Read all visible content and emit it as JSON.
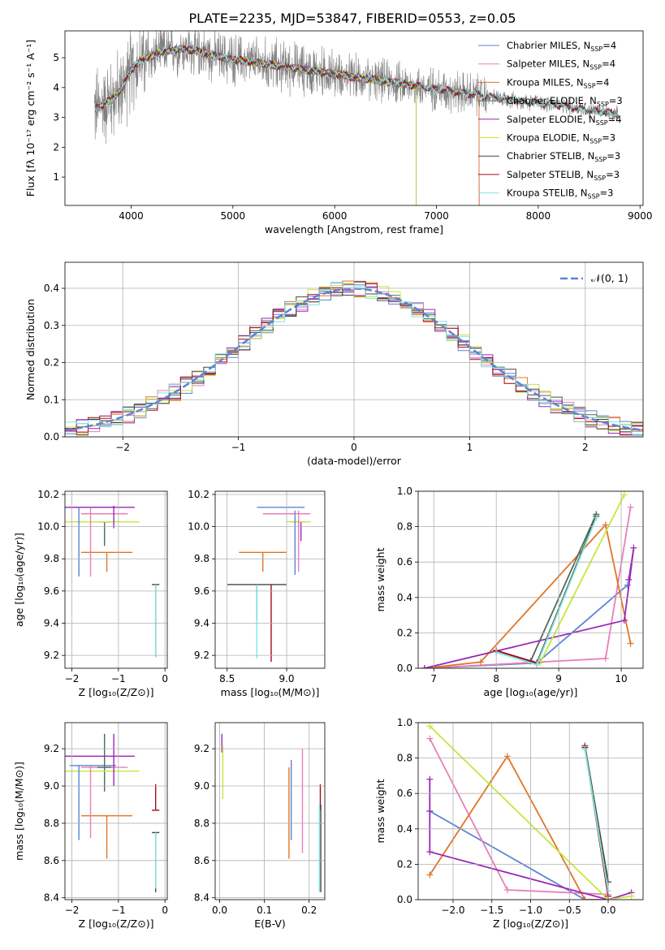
{
  "figure": {
    "title": "PLATE=2235, MJD=53847, FIBERID=0553, z=0.05"
  },
  "colors": {
    "Chabrier MILES": "#5b84d6",
    "Salpeter MILES": "#e87fb8",
    "Kroupa MILES": "#e07424",
    "Chabrier ELODIE": "#4f6b57",
    "Salpeter ELODIE": "#9a27b8",
    "Kroupa ELODIE": "#c4e83c",
    "Chabrier STELIB": "#3d4a40",
    "Salpeter STELIB": "#a8081e",
    "Kroupa STELIB": "#7fe6df",
    "data": "#808080",
    "gauss": "#5b84d6"
  },
  "chart_data": [
    {
      "id": "spectrum",
      "type": "line",
      "title": "PLATE=2235, MJD=53847, FIBERID=0553, z=0.05",
      "xlabel": "wavelength [Angstrom, rest frame]",
      "ylabel": "Flux [fλ 10⁻¹⁷ erg cm⁻² s⁻¹ A⁻¹]",
      "xlim": [
        3350,
        9030
      ],
      "ylim": [
        0.05,
        5.9
      ],
      "xticks": [
        4000,
        5000,
        6000,
        7000,
        8000,
        9000
      ],
      "yticks": [
        1,
        2,
        3,
        4,
        5
      ],
      "grid": false,
      "legend_position": "top-right",
      "legend": [
        {
          "label": "Chabrier MILES, N",
          "sub": "SSP",
          "suffix": "=4",
          "model": "Chabrier MILES"
        },
        {
          "label": "Salpeter MILES, N",
          "sub": "SSP",
          "suffix": "=4",
          "model": "Salpeter MILES"
        },
        {
          "label": "Kroupa MILES, N",
          "sub": "SSP",
          "suffix": "=4",
          "model": "Kroupa MILES"
        },
        {
          "label": "Chabrier ELODIE, N",
          "sub": "SSP",
          "suffix": "=3",
          "model": "Chabrier ELODIE"
        },
        {
          "label": "Salpeter ELODIE, N",
          "sub": "SSP",
          "suffix": "=4",
          "model": "Salpeter ELODIE"
        },
        {
          "label": "Kroupa ELODIE, N",
          "sub": "SSP",
          "suffix": "=3",
          "model": "Kroupa ELODIE"
        },
        {
          "label": "Chabrier STELIB, N",
          "sub": "SSP",
          "suffix": "=3",
          "model": "Chabrier STELIB"
        },
        {
          "label": "Salpeter STELIB, N",
          "sub": "SSP",
          "suffix": "=3",
          "model": "Salpeter STELIB"
        },
        {
          "label": "Kroupa STELIB, N",
          "sub": "SSP",
          "suffix": "=3",
          "model": "Kroupa STELIB"
        }
      ],
      "continuum": [
        [
          3650,
          3.3
        ],
        [
          3800,
          3.6
        ],
        [
          3900,
          3.9
        ],
        [
          4000,
          4.6
        ],
        [
          4100,
          4.9
        ],
        [
          4300,
          5.2
        ],
        [
          4500,
          5.3
        ],
        [
          4700,
          5.2
        ],
        [
          4900,
          5.0
        ],
        [
          5100,
          4.9
        ],
        [
          5400,
          4.75
        ],
        [
          5700,
          4.6
        ],
        [
          6000,
          4.45
        ],
        [
          6300,
          4.3
        ],
        [
          6600,
          4.15
        ],
        [
          6900,
          4.0
        ],
        [
          7200,
          3.85
        ],
        [
          7500,
          3.7
        ],
        [
          7800,
          3.55
        ],
        [
          8100,
          3.45
        ],
        [
          8400,
          3.3
        ],
        [
          8700,
          3.15
        ],
        [
          8780,
          3.1
        ]
      ],
      "models_range": {
        "MILES": [
          3650,
          7420
        ],
        "ELODIE": [
          3650,
          6800
        ],
        "STELIB": [
          3650,
          8780
        ]
      }
    },
    {
      "id": "residuals",
      "type": "histogram",
      "xlabel": "(data-model)/error",
      "ylabel": "Normed distribution",
      "xlim": [
        -2.5,
        2.5
      ],
      "ylim": [
        0,
        0.47
      ],
      "xticks": [
        -2,
        -1,
        0,
        1,
        2
      ],
      "yticks": [
        0.0,
        0.1,
        0.2,
        0.3,
        0.4
      ],
      "grid": true,
      "legend_position": "top-right",
      "legend": [
        {
          "label": "𝒩(0, 1)"
        }
      ],
      "bin_width": 0.1,
      "gaussian": {
        "mean": 0,
        "sigma": 1
      }
    },
    {
      "id": "z_age",
      "type": "errorbar",
      "xlabel": "Z [log₁₀(Z/Z⊙)]",
      "ylabel": "age  [log₁₀(age/yr)]",
      "xlim": [
        -2.15,
        0.05
      ],
      "ylim": [
        9.12,
        10.22
      ],
      "xticks": [
        -2,
        -1,
        0
      ],
      "yticks": [
        9.2,
        9.4,
        9.6,
        9.8,
        10.0,
        10.2
      ],
      "grid": true,
      "points": [
        {
          "model": "Chabrier MILES",
          "x": -1.55,
          "xerr": 0.5,
          "y": 10.12,
          "yerr": [
            0.0,
            0.0
          ]
        },
        {
          "model": "Salpeter MILES",
          "x": -1.3,
          "xerr": 0.5,
          "y": 10.08,
          "yerr": [
            0.0,
            0.0
          ]
        },
        {
          "model": "Kroupa MILES",
          "x": -1.25,
          "xerr": 0.55,
          "y": 9.84,
          "yerr": [
            0.12,
            0.0
          ]
        },
        {
          "model": "Chabrier ELODIE",
          "x": -1.3,
          "xerr": 0.15,
          "y": 10.03,
          "yerr": [
            0.15,
            0.0
          ]
        },
        {
          "model": "Salpeter ELODIE",
          "x": -1.45,
          "xerr": 0.8,
          "y": 10.12,
          "yerr": [
            0.0,
            0.0
          ]
        },
        {
          "model": "Kroupa ELODIE",
          "x": -1.35,
          "xerr": 0.8,
          "y": 10.03,
          "yerr": [
            0.0,
            0.0
          ]
        },
        {
          "model": "Chabrier STELIB",
          "x": -0.2,
          "xerr": 0.08,
          "y": 9.64,
          "yerr": [
            0.45,
            0.0
          ]
        },
        {
          "model": "Salpeter STELIB",
          "x": -0.2,
          "xerr": 0.0,
          "y": 9.64,
          "yerr": [
            0.45,
            0.0
          ]
        },
        {
          "model": "Kroupa STELIB",
          "x": -0.2,
          "xerr": 0.0,
          "y": 9.64,
          "yerr": [
            0.45,
            0.0
          ]
        },
        {
          "model": "Chabrier MILES",
          "x": -1.85,
          "xerr": 0.0,
          "y": 9.92,
          "yerr": [
            0.23,
            0.2
          ]
        },
        {
          "model": "Salpeter MILES",
          "x": -1.6,
          "xerr": 0.0,
          "y": 9.92,
          "yerr": [
            0.23,
            0.2
          ]
        },
        {
          "model": "Salpeter ELODIE",
          "x": -1.1,
          "xerr": 0.0,
          "y": 10.06,
          "yerr": [
            0.07,
            0.07
          ]
        }
      ]
    },
    {
      "id": "mass_age",
      "type": "errorbar",
      "xlabel": "mass [log₁₀(M/M⊙)]",
      "ylabel": "",
      "xlim": [
        8.4,
        9.32
      ],
      "ylim": [
        9.12,
        10.22
      ],
      "xticks": [
        8.5,
        9.0
      ],
      "yticks": [
        9.2,
        9.4,
        9.6,
        9.8,
        10.0,
        10.2
      ],
      "grid": true,
      "points": [
        {
          "model": "Chabrier MILES",
          "x": 8.95,
          "xerr": 0.2,
          "y": 10.12,
          "yerr": [
            0.0,
            0.0
          ]
        },
        {
          "model": "Salpeter MILES",
          "x": 9.0,
          "xerr": 0.2,
          "y": 10.08,
          "yerr": [
            0.0,
            0.0
          ]
        },
        {
          "model": "Kroupa MILES",
          "x": 8.8,
          "xerr": 0.2,
          "y": 9.84,
          "yerr": [
            0.12,
            0.0
          ]
        },
        {
          "model": "Chabrier ELODIE",
          "x": 9.1,
          "xerr": 0.05,
          "y": 10.03,
          "yerr": [
            0.05,
            0.0
          ]
        },
        {
          "model": "Salpeter ELODIE",
          "x": 9.12,
          "xerr": 0.0,
          "y": 10.03,
          "yerr": [
            0.12,
            0.0
          ]
        },
        {
          "model": "Kroupa ELODIE",
          "x": 9.1,
          "xerr": 0.1,
          "y": 10.03,
          "yerr": [
            0.0,
            0.0
          ]
        },
        {
          "model": "Chabrier STELIB",
          "x": 8.75,
          "xerr": 0.25,
          "y": 9.64,
          "yerr": [
            0.22,
            0.0
          ]
        },
        {
          "model": "Salpeter STELIB",
          "x": 8.87,
          "xerr": 0.0,
          "y": 9.64,
          "yerr": [
            0.48,
            0.0
          ]
        },
        {
          "model": "Kroupa STELIB",
          "x": 8.75,
          "xerr": 0.0,
          "y": 9.64,
          "yerr": [
            0.46,
            0.0
          ]
        },
        {
          "model": "Chabrier MILES",
          "x": 9.07,
          "xerr": 0.0,
          "y": 9.92,
          "yerr": [
            0.22,
            0.18
          ]
        },
        {
          "model": "Salpeter MILES",
          "x": 9.1,
          "xerr": 0.0,
          "y": 9.92,
          "yerr": [
            0.2,
            0.18
          ]
        }
      ]
    },
    {
      "id": "age_weight",
      "type": "line",
      "xlabel": "age  [log₁₀(age/yr)]",
      "ylabel": "mass weight",
      "xlim": [
        6.75,
        10.35
      ],
      "ylim": [
        0.0,
        1.0
      ],
      "xticks": [
        7,
        8,
        9,
        10
      ],
      "yticks": [
        0.0,
        0.2,
        0.4,
        0.6,
        0.8,
        1.0
      ],
      "grid": true,
      "series": [
        {
          "model": "Chabrier MILES",
          "x": [
            6.85,
            8.65,
            10.1
          ],
          "y": [
            0.0,
            0.03,
            0.47
          ]
        },
        {
          "model": "Salpeter MILES",
          "x": [
            6.85,
            9.75,
            10.15
          ],
          "y": [
            0.0,
            0.055,
            0.91
          ]
        },
        {
          "model": "Kroupa MILES",
          "x": [
            6.85,
            7.75,
            9.75,
            10.15
          ],
          "y": [
            0.0,
            0.035,
            0.81,
            0.14
          ]
        },
        {
          "model": "Chabrier ELODIE",
          "x": [
            8.0,
            8.55,
            9.6
          ],
          "y": [
            0.1,
            0.04,
            0.87
          ]
        },
        {
          "model": "Salpeter ELODIE",
          "x": [
            6.85,
            10.05,
            10.2,
            10.12
          ],
          "y": [
            0.0,
            0.27,
            0.68,
            0.5
          ]
        },
        {
          "model": "Kroupa ELODIE",
          "x": [
            8.7,
            10.05
          ],
          "y": [
            0.03,
            0.98
          ]
        },
        {
          "model": "Chabrier STELIB",
          "x": [
            8.0,
            8.65,
            9.6
          ],
          "y": [
            0.1,
            0.03,
            0.86
          ]
        },
        {
          "model": "Salpeter STELIB",
          "x": [
            8.0,
            8.65
          ],
          "y": [
            0.1,
            0.03
          ]
        },
        {
          "model": "Kroupa STELIB",
          "x": [
            8.0,
            8.65,
            9.6
          ],
          "y": [
            0.09,
            0.02,
            0.85
          ]
        }
      ]
    },
    {
      "id": "z_mass",
      "type": "errorbar",
      "xlabel": "Z [log₁₀(Z/Z⊙)]",
      "ylabel": "mass [log₁₀(M/M⊙)]",
      "xlim": [
        -2.15,
        0.05
      ],
      "ylim": [
        8.39,
        9.34
      ],
      "xticks": [
        -2,
        -1,
        0
      ],
      "yticks": [
        8.4,
        8.6,
        8.8,
        9.0,
        9.2
      ],
      "grid": true,
      "points": [
        {
          "model": "Chabrier MILES",
          "x": -1.55,
          "xerr": 0.5,
          "y": 9.11,
          "yerr": [
            0.0,
            0.0
          ]
        },
        {
          "model": "Salpeter MILES",
          "x": -1.3,
          "xerr": 0.5,
          "y": 9.1,
          "yerr": [
            0.0,
            0.0
          ]
        },
        {
          "model": "Kroupa MILES",
          "x": -1.25,
          "xerr": 0.55,
          "y": 8.84,
          "yerr": [
            0.23,
            0.0
          ]
        },
        {
          "model": "Chabrier ELODIE",
          "x": -1.3,
          "xerr": 0.15,
          "y": 9.1,
          "yerr": [
            0.13,
            0.18
          ]
        },
        {
          "model": "Salpeter ELODIE",
          "x": -1.45,
          "xerr": 0.8,
          "y": 9.16,
          "yerr": [
            0.0,
            0.0
          ]
        },
        {
          "model": "Kroupa ELODIE",
          "x": -1.35,
          "xerr": 0.8,
          "y": 9.08,
          "yerr": [
            0.0,
            0.0
          ]
        },
        {
          "model": "Chabrier STELIB",
          "x": -0.2,
          "xerr": 0.08,
          "y": 8.75,
          "yerr": [
            0.32,
            0.0
          ]
        },
        {
          "model": "Salpeter STELIB",
          "x": -0.2,
          "xerr": 0.08,
          "y": 8.87,
          "yerr": [
            0.0,
            0.14
          ]
        },
        {
          "model": "Kroupa STELIB",
          "x": -0.2,
          "xerr": 0.0,
          "y": 8.75,
          "yerr": [
            0.3,
            0.0
          ]
        },
        {
          "model": "Chabrier MILES",
          "x": -1.85,
          "xerr": 0.0,
          "y": 8.9,
          "yerr": [
            0.19,
            0.21
          ]
        },
        {
          "model": "Salpeter MILES",
          "x": -1.6,
          "xerr": 0.0,
          "y": 8.9,
          "yerr": [
            0.18,
            0.21
          ]
        },
        {
          "model": "Salpeter ELODIE",
          "x": -1.1,
          "xerr": 0.0,
          "y": 9.14,
          "yerr": [
            0.14,
            0.14
          ]
        }
      ]
    },
    {
      "id": "ebv_mass",
      "type": "errorbar",
      "xlabel": "E(B-V)",
      "ylabel": "",
      "xlim": [
        -0.01,
        0.235
      ],
      "ylim": [
        8.39,
        9.34
      ],
      "xticks": [
        0.0,
        0.1,
        0.2
      ],
      "yticks": [
        8.4,
        8.6,
        8.8,
        9.0,
        9.2
      ],
      "grid": true,
      "points": [
        {
          "model": "Salpeter ELODIE",
          "x": 0.005,
          "y": 9.23,
          "yerr": [
            0.05,
            0.05
          ]
        },
        {
          "model": "Kroupa ELODIE",
          "x": 0.007,
          "y": 9.1,
          "yerr": [
            0.17,
            0.12
          ]
        },
        {
          "model": "Kroupa MILES",
          "x": 0.155,
          "y": 8.85,
          "yerr": [
            0.24,
            0.25
          ]
        },
        {
          "model": "Chabrier MILES",
          "x": 0.16,
          "y": 8.92,
          "yerr": [
            0.21,
            0.22
          ]
        },
        {
          "model": "Salpeter MILES",
          "x": 0.185,
          "y": 8.92,
          "yerr": [
            0.28,
            0.28
          ]
        },
        {
          "model": "Salpeter STELIB",
          "x": 0.225,
          "y": 8.87,
          "yerr": [
            0.0,
            0.14
          ]
        },
        {
          "model": "Kroupa STELIB",
          "x": 0.223,
          "y": 8.75,
          "yerr": [
            0.32,
            0.15
          ]
        },
        {
          "model": "Chabrier STELIB",
          "x": 0.226,
          "y": 8.75,
          "yerr": [
            0.32,
            0.15
          ]
        }
      ]
    },
    {
      "id": "z_weight",
      "type": "line",
      "xlabel": "Z [log₁₀(Z/Z⊙)]",
      "ylabel": "mass weight",
      "xlim": [
        -2.45,
        0.45
      ],
      "ylim": [
        0.0,
        1.0
      ],
      "xticks": [
        -2.0,
        -1.5,
        -1.0,
        -0.5,
        0.0
      ],
      "yticks": [
        0.0,
        0.2,
        0.4,
        0.6,
        0.8,
        1.0
      ],
      "grid": true,
      "series": [
        {
          "model": "Chabrier MILES",
          "x": [
            -2.3,
            -0.3,
            0.0
          ],
          "y": [
            0.5,
            0.0,
            0.0
          ]
        },
        {
          "model": "Salpeter MILES",
          "x": [
            -2.3,
            -1.3,
            0.0
          ],
          "y": [
            0.91,
            0.055,
            0.03
          ]
        },
        {
          "model": "Kroupa MILES",
          "x": [
            -2.3,
            -1.3,
            -0.3,
            0.0
          ],
          "y": [
            0.14,
            0.81,
            0.0,
            0.0
          ]
        },
        {
          "model": "Chabrier ELODIE",
          "x": [
            -0.3,
            0.0
          ],
          "y": [
            0.87,
            0.1
          ]
        },
        {
          "model": "Salpeter ELODIE",
          "x": [
            -2.3,
            -2.3,
            -2.3,
            0.0,
            0.3
          ],
          "y": [
            0.68,
            0.5,
            0.27,
            0.0,
            0.04
          ]
        },
        {
          "model": "Kroupa ELODIE",
          "x": [
            -2.3,
            0.0,
            0.3
          ],
          "y": [
            0.98,
            0.0,
            0.02
          ]
        },
        {
          "model": "Chabrier STELIB",
          "x": [
            -0.3,
            0.0
          ],
          "y": [
            0.86,
            0.1
          ]
        },
        {
          "model": "Salpeter STELIB",
          "x": [
            -0.3,
            0.0
          ],
          "y": [
            0.86,
            0.02
          ]
        },
        {
          "model": "Kroupa STELIB",
          "x": [
            -0.3,
            0.0
          ],
          "y": [
            0.85,
            0.05
          ]
        }
      ]
    }
  ]
}
